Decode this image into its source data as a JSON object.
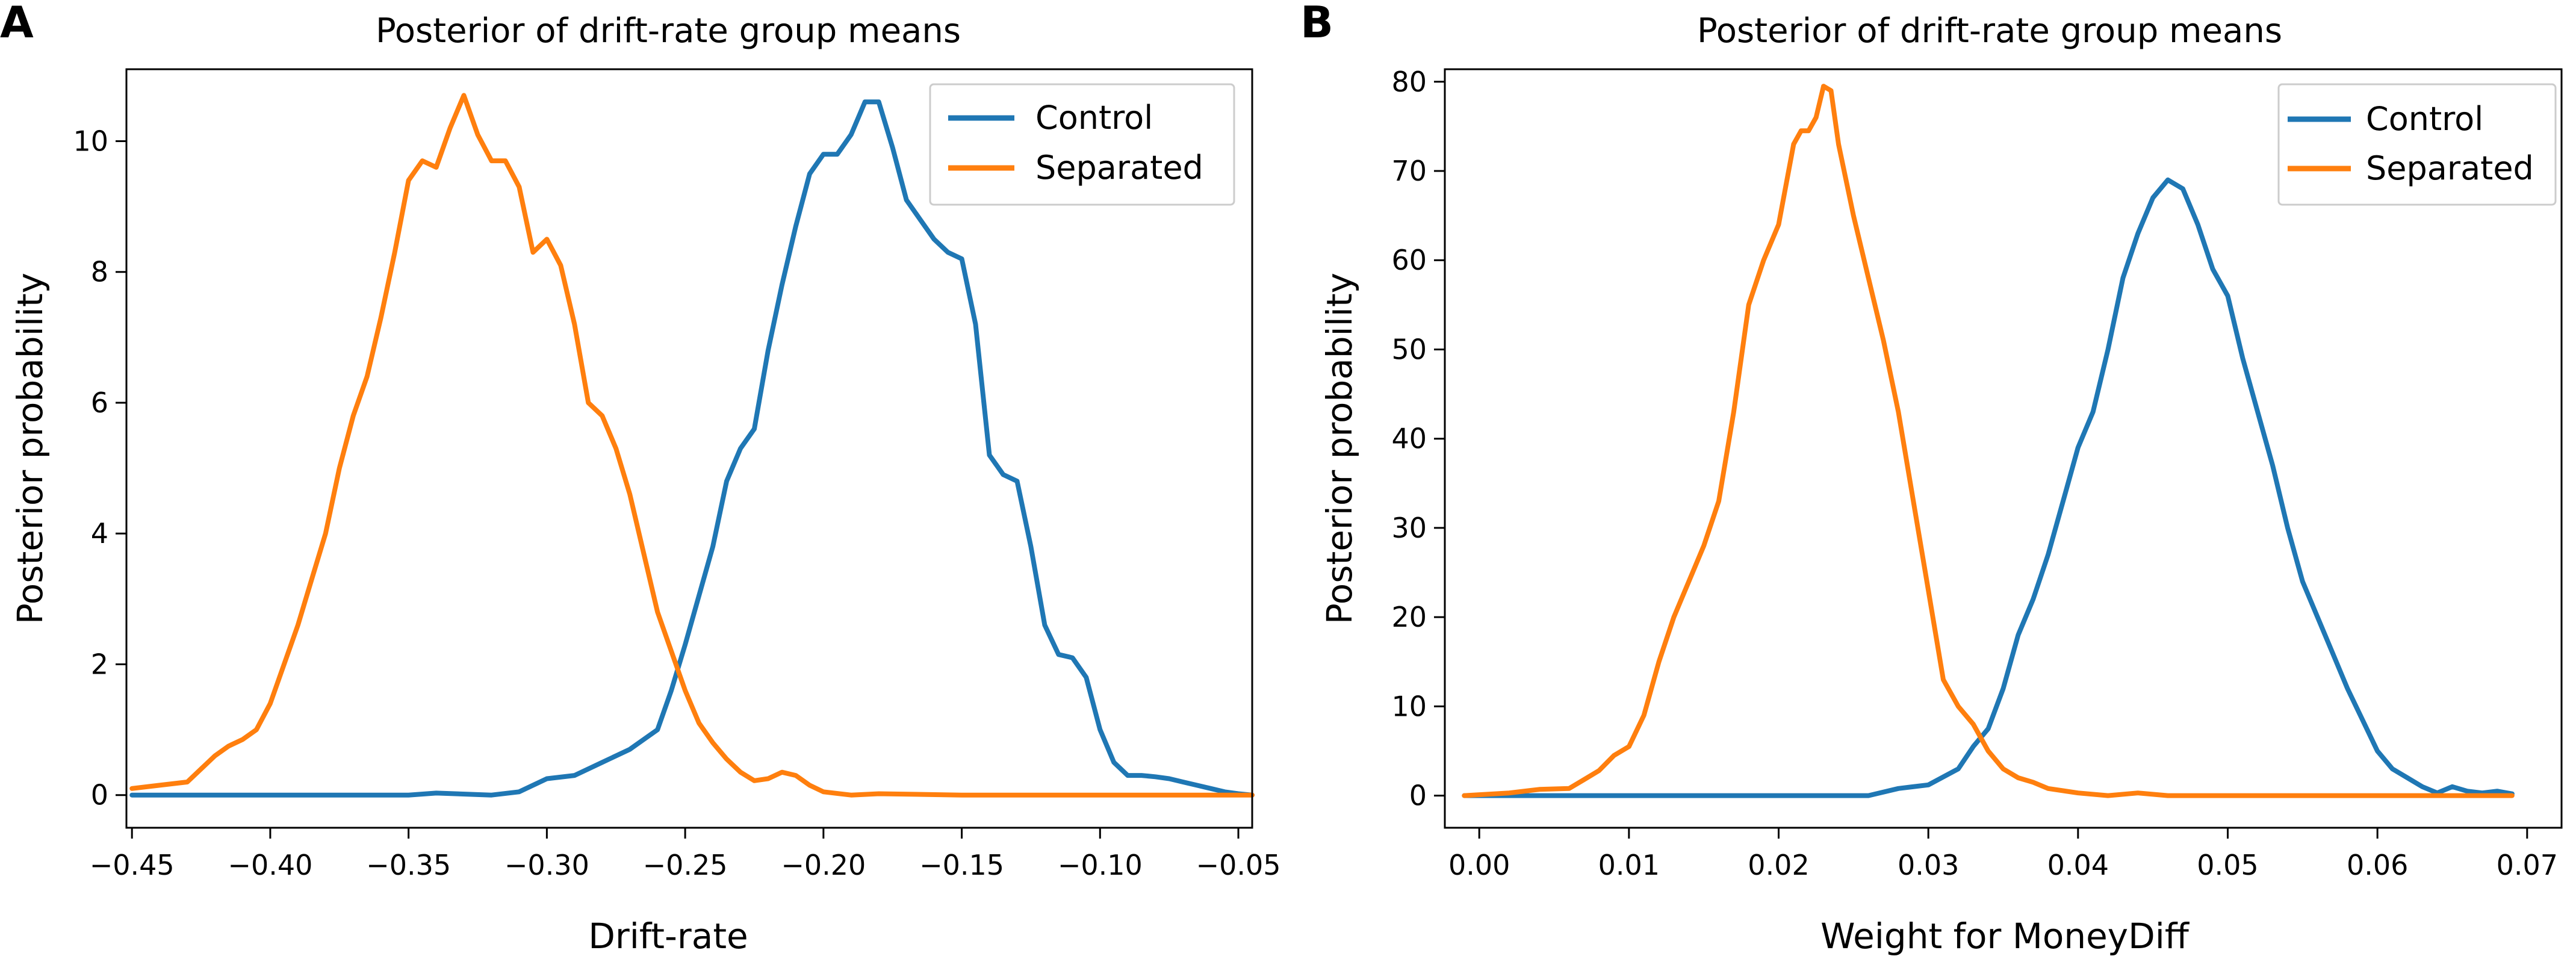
{
  "chart_data": [
    {
      "panel_label": "A",
      "type": "line",
      "title": "Posterior of drift-rate group means",
      "xlabel": "Drift-rate",
      "ylabel": "Posterior probability",
      "xlim": [
        -0.452,
        -0.045
      ],
      "ylim": [
        -0.5,
        11.1
      ],
      "xticks": [
        -0.45,
        -0.4,
        -0.35,
        -0.3,
        -0.25,
        -0.2,
        -0.15,
        -0.1,
        -0.05
      ],
      "xtick_labels": [
        "−0.45",
        "−0.40",
        "−0.35",
        "−0.30",
        "−0.25",
        "−0.20",
        "−0.15",
        "−0.10",
        "−0.05"
      ],
      "yticks": [
        0,
        2,
        4,
        6,
        8,
        10
      ],
      "ytick_labels": [
        "0",
        "2",
        "4",
        "6",
        "8",
        "10"
      ],
      "legend_position": "top-right",
      "series": [
        {
          "name": "Control",
          "color": "#1f77b4",
          "x": [
            -0.45,
            -0.4,
            -0.35,
            -0.34,
            -0.32,
            -0.31,
            -0.3,
            -0.29,
            -0.28,
            -0.27,
            -0.265,
            -0.26,
            -0.255,
            -0.25,
            -0.24,
            -0.235,
            -0.23,
            -0.225,
            -0.22,
            -0.215,
            -0.21,
            -0.205,
            -0.2,
            -0.195,
            -0.19,
            -0.185,
            -0.18,
            -0.175,
            -0.17,
            -0.165,
            -0.16,
            -0.155,
            -0.15,
            -0.145,
            -0.14,
            -0.135,
            -0.13,
            -0.125,
            -0.12,
            -0.115,
            -0.11,
            -0.105,
            -0.1,
            -0.095,
            -0.09,
            -0.085,
            -0.08,
            -0.075,
            -0.07,
            -0.065,
            -0.06,
            -0.055,
            -0.05,
            -0.045
          ],
          "y": [
            0,
            0,
            0,
            0.03,
            0,
            0.05,
            0.25,
            0.3,
            0.5,
            0.7,
            0.85,
            1.0,
            1.6,
            2.3,
            3.8,
            4.8,
            5.3,
            5.6,
            6.8,
            7.8,
            8.7,
            9.5,
            9.8,
            9.8,
            10.1,
            10.6,
            10.6,
            9.9,
            9.1,
            8.8,
            8.5,
            8.3,
            8.2,
            7.2,
            5.2,
            4.9,
            4.8,
            3.8,
            2.6,
            2.15,
            2.1,
            1.8,
            1.0,
            0.5,
            0.3,
            0.3,
            0.28,
            0.25,
            0.2,
            0.15,
            0.1,
            0.05,
            0.02,
            0.0
          ]
        },
        {
          "name": "Separated",
          "color": "#ff7f0e",
          "x": [
            -0.45,
            -0.44,
            -0.43,
            -0.425,
            -0.42,
            -0.415,
            -0.41,
            -0.405,
            -0.4,
            -0.395,
            -0.39,
            -0.385,
            -0.38,
            -0.375,
            -0.37,
            -0.365,
            -0.36,
            -0.355,
            -0.35,
            -0.345,
            -0.34,
            -0.335,
            -0.33,
            -0.325,
            -0.32,
            -0.315,
            -0.31,
            -0.305,
            -0.3,
            -0.295,
            -0.29,
            -0.285,
            -0.28,
            -0.275,
            -0.27,
            -0.265,
            -0.26,
            -0.255,
            -0.25,
            -0.245,
            -0.24,
            -0.235,
            -0.23,
            -0.225,
            -0.22,
            -0.215,
            -0.21,
            -0.205,
            -0.2,
            -0.19,
            -0.18,
            -0.15,
            -0.1,
            -0.045
          ],
          "y": [
            0.1,
            0.15,
            0.2,
            0.4,
            0.6,
            0.75,
            0.85,
            1.0,
            1.4,
            2.0,
            2.6,
            3.3,
            4.0,
            5.0,
            5.8,
            6.4,
            7.3,
            8.3,
            9.4,
            9.7,
            9.6,
            10.2,
            10.7,
            10.1,
            9.7,
            9.7,
            9.3,
            8.3,
            8.5,
            8.1,
            7.2,
            6.0,
            5.8,
            5.3,
            4.6,
            3.7,
            2.8,
            2.2,
            1.6,
            1.1,
            0.8,
            0.55,
            0.35,
            0.22,
            0.25,
            0.35,
            0.3,
            0.15,
            0.05,
            0.0,
            0.02,
            0.0,
            0.0,
            0.0
          ]
        }
      ]
    },
    {
      "panel_label": "B",
      "type": "line",
      "title": "Posterior of drift-rate group means",
      "xlabel": "Weight for MoneyDiff",
      "ylabel": "Posterior probability",
      "xlim": [
        -0.0023,
        0.0723
      ],
      "ylim": [
        -3.6,
        81.4
      ],
      "xticks": [
        0.0,
        0.01,
        0.02,
        0.03,
        0.04,
        0.05,
        0.06,
        0.07
      ],
      "xtick_labels": [
        "0.00",
        "0.01",
        "0.02",
        "0.03",
        "0.04",
        "0.05",
        "0.06",
        "0.07"
      ],
      "yticks": [
        0,
        10,
        20,
        30,
        40,
        50,
        60,
        70,
        80
      ],
      "ytick_labels": [
        "0",
        "10",
        "20",
        "30",
        "40",
        "50",
        "60",
        "70",
        "80"
      ],
      "legend_position": "top-right",
      "series": [
        {
          "name": "Control",
          "color": "#1f77b4",
          "x": [
            -0.001,
            0.01,
            0.02,
            0.026,
            0.028,
            0.03,
            0.032,
            0.033,
            0.034,
            0.035,
            0.036,
            0.037,
            0.038,
            0.039,
            0.04,
            0.041,
            0.042,
            0.043,
            0.044,
            0.045,
            0.046,
            0.047,
            0.048,
            0.049,
            0.05,
            0.051,
            0.052,
            0.053,
            0.054,
            0.055,
            0.056,
            0.057,
            0.058,
            0.059,
            0.06,
            0.061,
            0.062,
            0.063,
            0.064,
            0.065,
            0.066,
            0.067,
            0.068,
            0.069
          ],
          "y": [
            0,
            0,
            0,
            0,
            0.8,
            1.2,
            3.0,
            5.5,
            7.5,
            12.0,
            18.0,
            22.0,
            27.0,
            33.0,
            39.0,
            43.0,
            50.0,
            58.0,
            63.0,
            67.0,
            69.0,
            68.0,
            64.0,
            59.0,
            56.0,
            49.0,
            43.0,
            37.0,
            30.0,
            24.0,
            20.0,
            16.0,
            12.0,
            8.5,
            5.0,
            3.0,
            2.0,
            1.0,
            0.3,
            1.0,
            0.5,
            0.3,
            0.5,
            0.2
          ]
        },
        {
          "name": "Separated",
          "color": "#ff7f0e",
          "x": [
            -0.001,
            0.002,
            0.004,
            0.006,
            0.007,
            0.008,
            0.009,
            0.01,
            0.011,
            0.012,
            0.013,
            0.014,
            0.015,
            0.016,
            0.017,
            0.018,
            0.019,
            0.02,
            0.021,
            0.0215,
            0.022,
            0.0225,
            0.023,
            0.0235,
            0.024,
            0.025,
            0.026,
            0.027,
            0.028,
            0.029,
            0.03,
            0.031,
            0.032,
            0.033,
            0.034,
            0.035,
            0.036,
            0.037,
            0.038,
            0.04,
            0.042,
            0.044,
            0.046,
            0.05,
            0.06,
            0.069
          ],
          "y": [
            0,
            0.3,
            0.7,
            0.8,
            1.8,
            2.8,
            4.5,
            5.5,
            9.0,
            15.0,
            20.0,
            24.0,
            28.0,
            33.0,
            43.0,
            55.0,
            60.0,
            64.0,
            73.0,
            74.5,
            74.5,
            76.0,
            79.5,
            79.0,
            73.0,
            65.0,
            58.0,
            51.0,
            43.0,
            33.0,
            23.0,
            13.0,
            10.0,
            8.0,
            5.0,
            3.0,
            2.0,
            1.5,
            0.8,
            0.3,
            0.0,
            0.3,
            0.0,
            0.0,
            0.0,
            0.0
          ]
        }
      ]
    }
  ]
}
